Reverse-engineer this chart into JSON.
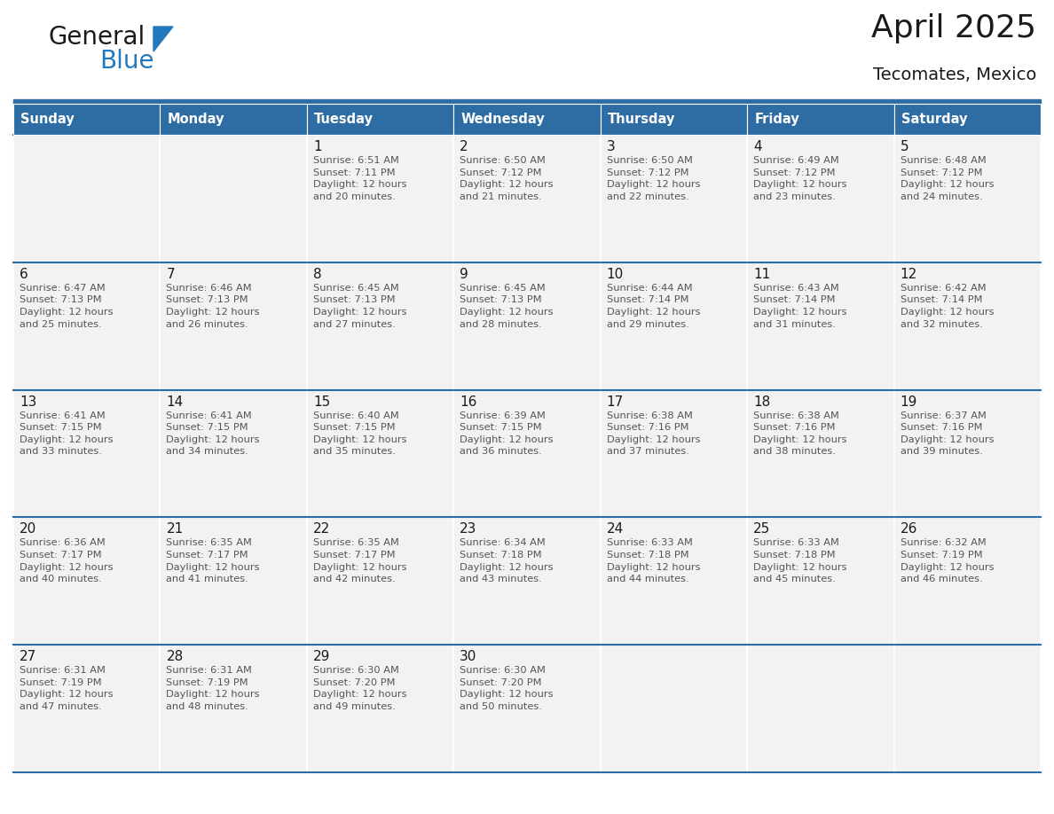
{
  "title": "April 2025",
  "subtitle": "Tecomates, Mexico",
  "header_color": "#2E6DA4",
  "header_text_color": "#FFFFFF",
  "background_color": "#FFFFFF",
  "cell_bg_color": "#F2F2F2",
  "day_names": [
    "Sunday",
    "Monday",
    "Tuesday",
    "Wednesday",
    "Thursday",
    "Friday",
    "Saturday"
  ],
  "weeks": [
    [
      {
        "day": "",
        "info": ""
      },
      {
        "day": "",
        "info": ""
      },
      {
        "day": "1",
        "info": "Sunrise: 6:51 AM\nSunset: 7:11 PM\nDaylight: 12 hours\nand 20 minutes."
      },
      {
        "day": "2",
        "info": "Sunrise: 6:50 AM\nSunset: 7:12 PM\nDaylight: 12 hours\nand 21 minutes."
      },
      {
        "day": "3",
        "info": "Sunrise: 6:50 AM\nSunset: 7:12 PM\nDaylight: 12 hours\nand 22 minutes."
      },
      {
        "day": "4",
        "info": "Sunrise: 6:49 AM\nSunset: 7:12 PM\nDaylight: 12 hours\nand 23 minutes."
      },
      {
        "day": "5",
        "info": "Sunrise: 6:48 AM\nSunset: 7:12 PM\nDaylight: 12 hours\nand 24 minutes."
      }
    ],
    [
      {
        "day": "6",
        "info": "Sunrise: 6:47 AM\nSunset: 7:13 PM\nDaylight: 12 hours\nand 25 minutes."
      },
      {
        "day": "7",
        "info": "Sunrise: 6:46 AM\nSunset: 7:13 PM\nDaylight: 12 hours\nand 26 minutes."
      },
      {
        "day": "8",
        "info": "Sunrise: 6:45 AM\nSunset: 7:13 PM\nDaylight: 12 hours\nand 27 minutes."
      },
      {
        "day": "9",
        "info": "Sunrise: 6:45 AM\nSunset: 7:13 PM\nDaylight: 12 hours\nand 28 minutes."
      },
      {
        "day": "10",
        "info": "Sunrise: 6:44 AM\nSunset: 7:14 PM\nDaylight: 12 hours\nand 29 minutes."
      },
      {
        "day": "11",
        "info": "Sunrise: 6:43 AM\nSunset: 7:14 PM\nDaylight: 12 hours\nand 31 minutes."
      },
      {
        "day": "12",
        "info": "Sunrise: 6:42 AM\nSunset: 7:14 PM\nDaylight: 12 hours\nand 32 minutes."
      }
    ],
    [
      {
        "day": "13",
        "info": "Sunrise: 6:41 AM\nSunset: 7:15 PM\nDaylight: 12 hours\nand 33 minutes."
      },
      {
        "day": "14",
        "info": "Sunrise: 6:41 AM\nSunset: 7:15 PM\nDaylight: 12 hours\nand 34 minutes."
      },
      {
        "day": "15",
        "info": "Sunrise: 6:40 AM\nSunset: 7:15 PM\nDaylight: 12 hours\nand 35 minutes."
      },
      {
        "day": "16",
        "info": "Sunrise: 6:39 AM\nSunset: 7:15 PM\nDaylight: 12 hours\nand 36 minutes."
      },
      {
        "day": "17",
        "info": "Sunrise: 6:38 AM\nSunset: 7:16 PM\nDaylight: 12 hours\nand 37 minutes."
      },
      {
        "day": "18",
        "info": "Sunrise: 6:38 AM\nSunset: 7:16 PM\nDaylight: 12 hours\nand 38 minutes."
      },
      {
        "day": "19",
        "info": "Sunrise: 6:37 AM\nSunset: 7:16 PM\nDaylight: 12 hours\nand 39 minutes."
      }
    ],
    [
      {
        "day": "20",
        "info": "Sunrise: 6:36 AM\nSunset: 7:17 PM\nDaylight: 12 hours\nand 40 minutes."
      },
      {
        "day": "21",
        "info": "Sunrise: 6:35 AM\nSunset: 7:17 PM\nDaylight: 12 hours\nand 41 minutes."
      },
      {
        "day": "22",
        "info": "Sunrise: 6:35 AM\nSunset: 7:17 PM\nDaylight: 12 hours\nand 42 minutes."
      },
      {
        "day": "23",
        "info": "Sunrise: 6:34 AM\nSunset: 7:18 PM\nDaylight: 12 hours\nand 43 minutes."
      },
      {
        "day": "24",
        "info": "Sunrise: 6:33 AM\nSunset: 7:18 PM\nDaylight: 12 hours\nand 44 minutes."
      },
      {
        "day": "25",
        "info": "Sunrise: 6:33 AM\nSunset: 7:18 PM\nDaylight: 12 hours\nand 45 minutes."
      },
      {
        "day": "26",
        "info": "Sunrise: 6:32 AM\nSunset: 7:19 PM\nDaylight: 12 hours\nand 46 minutes."
      }
    ],
    [
      {
        "day": "27",
        "info": "Sunrise: 6:31 AM\nSunset: 7:19 PM\nDaylight: 12 hours\nand 47 minutes."
      },
      {
        "day": "28",
        "info": "Sunrise: 6:31 AM\nSunset: 7:19 PM\nDaylight: 12 hours\nand 48 minutes."
      },
      {
        "day": "29",
        "info": "Sunrise: 6:30 AM\nSunset: 7:20 PM\nDaylight: 12 hours\nand 49 minutes."
      },
      {
        "day": "30",
        "info": "Sunrise: 6:30 AM\nSunset: 7:20 PM\nDaylight: 12 hours\nand 50 minutes."
      },
      {
        "day": "",
        "info": ""
      },
      {
        "day": "",
        "info": ""
      },
      {
        "day": "",
        "info": ""
      }
    ]
  ],
  "logo_color_general": "#1a1a1a",
  "logo_color_blue": "#2479BD",
  "logo_triangle_color": "#2479BD",
  "separator_color": "#2E6DA4",
  "day_number_color": "#1a1a1a",
  "info_text_color": "#555555",
  "header_font_size": 10.5,
  "day_number_font_size": 11,
  "info_font_size": 8.2,
  "title_font_size": 26,
  "subtitle_font_size": 14
}
